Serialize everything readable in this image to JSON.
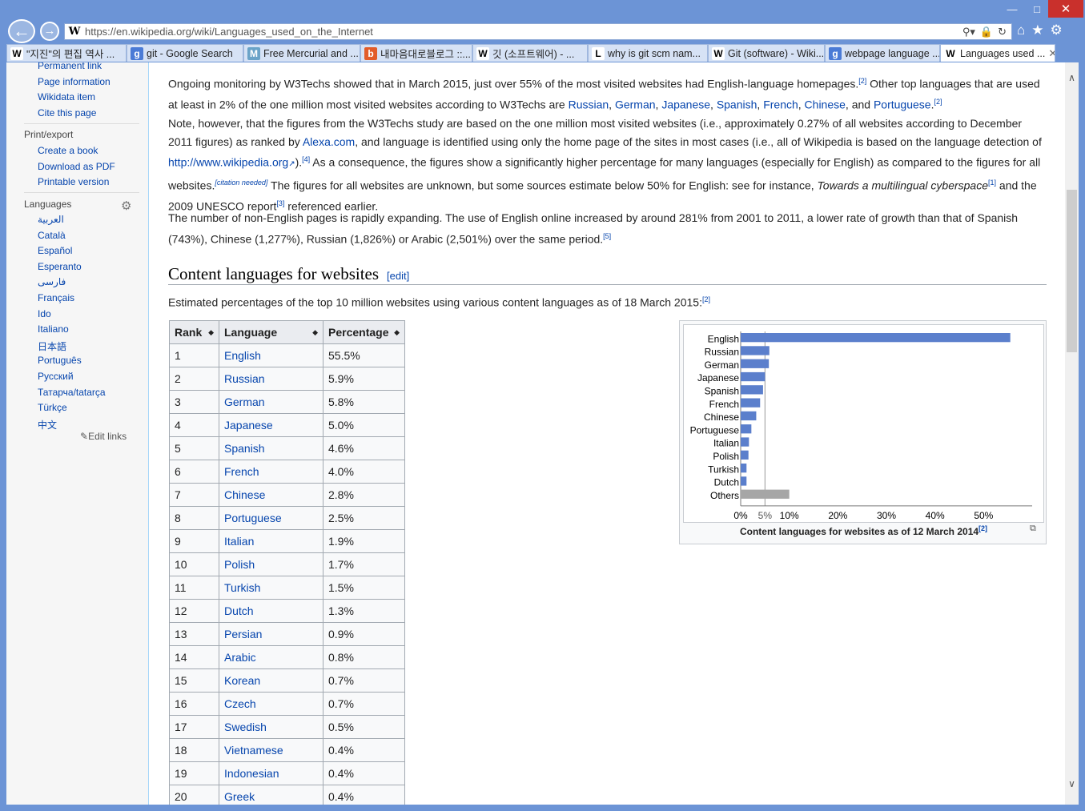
{
  "browser": {
    "url": "https://en.wikipedia.org/wiki/Languages_used_on_the_Internet",
    "tabs": [
      {
        "label": "\"지진\"의 편집 역사 ...",
        "icon": "W"
      },
      {
        "label": "git - Google Search",
        "icon": "g"
      },
      {
        "label": "Free Mercurial and ...",
        "icon": "M"
      },
      {
        "label": "내마음대로블로그 ::...",
        "icon": "b"
      },
      {
        "label": "깃 (소프트웨어) - ...",
        "icon": "W"
      },
      {
        "label": "why is git scm nam...",
        "icon": "L"
      },
      {
        "label": "Git (software) - Wiki...",
        "icon": "W"
      },
      {
        "label": "webpage language ...",
        "icon": "g"
      },
      {
        "label": "Languages used ...",
        "icon": "W"
      }
    ]
  },
  "sidebar": {
    "tools": [
      "Permanent link",
      "Page information",
      "Wikidata item",
      "Cite this page"
    ],
    "print_heading": "Print/export",
    "print_links": [
      "Create a book",
      "Download as PDF",
      "Printable version"
    ],
    "languages_heading": "Languages",
    "languages": [
      "العربية",
      "Català",
      "Español",
      "Esperanto",
      "فارسی",
      "Français",
      "Ido",
      "Italiano",
      "日本語",
      "Português",
      "Русский",
      "Татарча/tatarça",
      "Türkçe",
      "中文"
    ],
    "edit_links": "Edit links"
  },
  "content": {
    "p1": {
      "a": "Ongoing monitoring by W3Techs showed that in March 2015, just over 55% of the most visited websites had English-language homepages.",
      "ref1": "[2]",
      "b": " Other top languages that are used at least in 2% of the one million most visited websites according to W3Techs are ",
      "links": [
        "Russian",
        "German",
        "Japanese",
        "Spanish",
        "French",
        "Chinese",
        "Portuguese"
      ],
      "sep": ", ",
      "and": ", and ",
      "end": ".",
      "ref2": "[2]"
    },
    "p2": {
      "a": "Note, however, that the figures from the W3Techs study are based on the one million most visited websites (i.e., approximately 0.27% of all websites according to December 2011 figures) as ranked by ",
      "alexa": "Alexa.com",
      "b": ", and language is identified using only the home page of the sites in most cases (i.e., all of Wikipedia is based on the language detection of ",
      "wiki_link": "http://www.wikipedia.org",
      "c": ").",
      "ref4": "[4]",
      "d": " As a consequence, the figures show a significantly higher percentage for many languages (especially for English) as compared to the figures for all websites.",
      "citation": "[citation needed]",
      "e": " The figures for all websites are unknown, but some sources estimate below 50% for English: see for instance, ",
      "italic": "Towards a multilingual cyberspace",
      "ref1": "[1]",
      "f": " and the 2009 UNESCO report",
      "ref3": "[3]",
      "g": " referenced earlier."
    },
    "p3": {
      "a": "The number of non-English pages is rapidly expanding. The use of English online increased by around 281% from 2001 to 2011, a lower rate of growth than that of Spanish (743%), Chinese (1,277%), Russian (1,826%) or Arabic (2,501%) over the same period.",
      "ref5": "[5]"
    },
    "heading": "Content languages for websites",
    "edit": "[edit]",
    "intro": "Estimated percentages of the top 10 million websites using various content languages as of 18 March 2015:",
    "intro_ref": "[2]",
    "table": {
      "headers": [
        "Rank",
        "Language",
        "Percentage"
      ],
      "rows": [
        [
          "1",
          "English",
          "55.5%"
        ],
        [
          "2",
          "Russian",
          "5.9%"
        ],
        [
          "3",
          "German",
          "5.8%"
        ],
        [
          "4",
          "Japanese",
          "5.0%"
        ],
        [
          "5",
          "Spanish",
          "4.6%"
        ],
        [
          "6",
          "French",
          "4.0%"
        ],
        [
          "7",
          "Chinese",
          "2.8%"
        ],
        [
          "8",
          "Portuguese",
          "2.5%"
        ],
        [
          "9",
          "Italian",
          "1.9%"
        ],
        [
          "10",
          "Polish",
          "1.7%"
        ],
        [
          "11",
          "Turkish",
          "1.5%"
        ],
        [
          "12",
          "Dutch",
          "1.3%"
        ],
        [
          "13",
          "Persian",
          "0.9%"
        ],
        [
          "14",
          "Arabic",
          "0.8%"
        ],
        [
          "15",
          "Korean",
          "0.7%"
        ],
        [
          "16",
          "Czech",
          "0.7%"
        ],
        [
          "17",
          "Swedish",
          "0.5%"
        ],
        [
          "18",
          "Vietnamese",
          "0.4%"
        ],
        [
          "19",
          "Indonesian",
          "0.4%"
        ],
        [
          "20",
          "Greek",
          "0.4%"
        ]
      ]
    },
    "caption": "Content languages for websites as of 12 March 2014",
    "caption_ref": "[2]"
  },
  "chart_data": {
    "type": "bar",
    "orientation": "horizontal",
    "categories": [
      "English",
      "Russian",
      "German",
      "Japanese",
      "Spanish",
      "French",
      "Chinese",
      "Portuguese",
      "Italian",
      "Polish",
      "Turkish",
      "Dutch",
      "Others"
    ],
    "values": [
      55.5,
      5.9,
      5.8,
      5.0,
      4.6,
      4.0,
      3.2,
      2.2,
      1.7,
      1.6,
      1.2,
      1.2,
      10.0
    ],
    "colors": [
      "#5b7fcc",
      "#5b7fcc",
      "#5b7fcc",
      "#5b7fcc",
      "#5b7fcc",
      "#5b7fcc",
      "#5b7fcc",
      "#5b7fcc",
      "#5b7fcc",
      "#5b7fcc",
      "#5b7fcc",
      "#5b7fcc",
      "#a6a6a6"
    ],
    "xticks": [
      "0%",
      "5%",
      "10%",
      "20%",
      "30%",
      "40%",
      "50%"
    ],
    "xtick_values": [
      0,
      5,
      10,
      20,
      30,
      40,
      50
    ],
    "reference_line": 5,
    "xlim": [
      0,
      60
    ]
  }
}
